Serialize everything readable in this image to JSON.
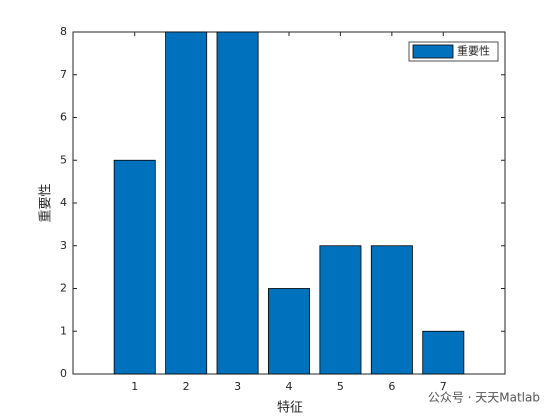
{
  "chart_data": {
    "type": "bar",
    "x": [
      1,
      2,
      3,
      4,
      5,
      6,
      7
    ],
    "xlabel": "特征",
    "ylabel": "重要性",
    "series": [
      {
        "name": "重要性",
        "color": "#0072bd",
        "values": [
          5,
          8,
          8,
          2,
          3,
          3,
          1
        ]
      }
    ],
    "xlim": [
      -0.2,
      8.2
    ],
    "xticks": [
      1,
      2,
      3,
      4,
      5,
      6,
      7
    ],
    "ylim": [
      0,
      8
    ],
    "yticks": [
      0,
      1,
      2,
      3,
      4,
      5,
      6,
      7,
      8
    ],
    "bar_width": 0.8,
    "legend": "northeast",
    "watermark": "公众号 · 天天Matlab"
  }
}
